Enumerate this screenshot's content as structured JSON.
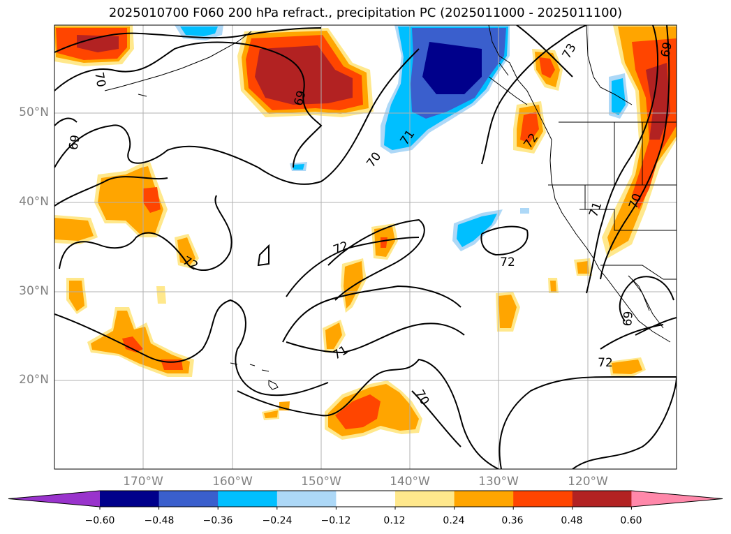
{
  "title": "2025010700 F060 200 hPa refract., precipitation PC (2025011000 - 2025011100)",
  "lat_labels": [
    "50°N",
    "40°N",
    "30°N",
    "20°N"
  ],
  "lon_labels": [
    "170°W",
    "160°W",
    "150°W",
    "140°W",
    "130°W",
    "120°W"
  ],
  "contour_labels": [
    "70",
    "69",
    "69",
    "71",
    "70",
    "73",
    "72",
    "69",
    "72",
    "72",
    "72",
    "71",
    "70",
    "71",
    "70",
    "69",
    "72"
  ],
  "colorbar": {
    "colors": [
      "#9933cc",
      "#00008b",
      "#3a5fcd",
      "#00bfff",
      "#add8f7",
      "#ffffff",
      "#ffe88c",
      "#ffa500",
      "#ff4500",
      "#b22222",
      "#ff88aa"
    ],
    "tick_labels": [
      "−0.60",
      "−0.48",
      "−0.36",
      "−0.24",
      "−0.12",
      "0.12",
      "0.24",
      "0.36",
      "0.48",
      "0.60"
    ]
  },
  "legend_colors": {
    "positive_light": "#ffe88c",
    "positive_mid": "#ffa500",
    "positive_high": "#ff4500",
    "positive_max": "#b22222",
    "negative_light": "#add8f7",
    "negative_mid": "#00bfff",
    "negative_high": "#3a5fcd",
    "negative_max": "#00008b"
  }
}
